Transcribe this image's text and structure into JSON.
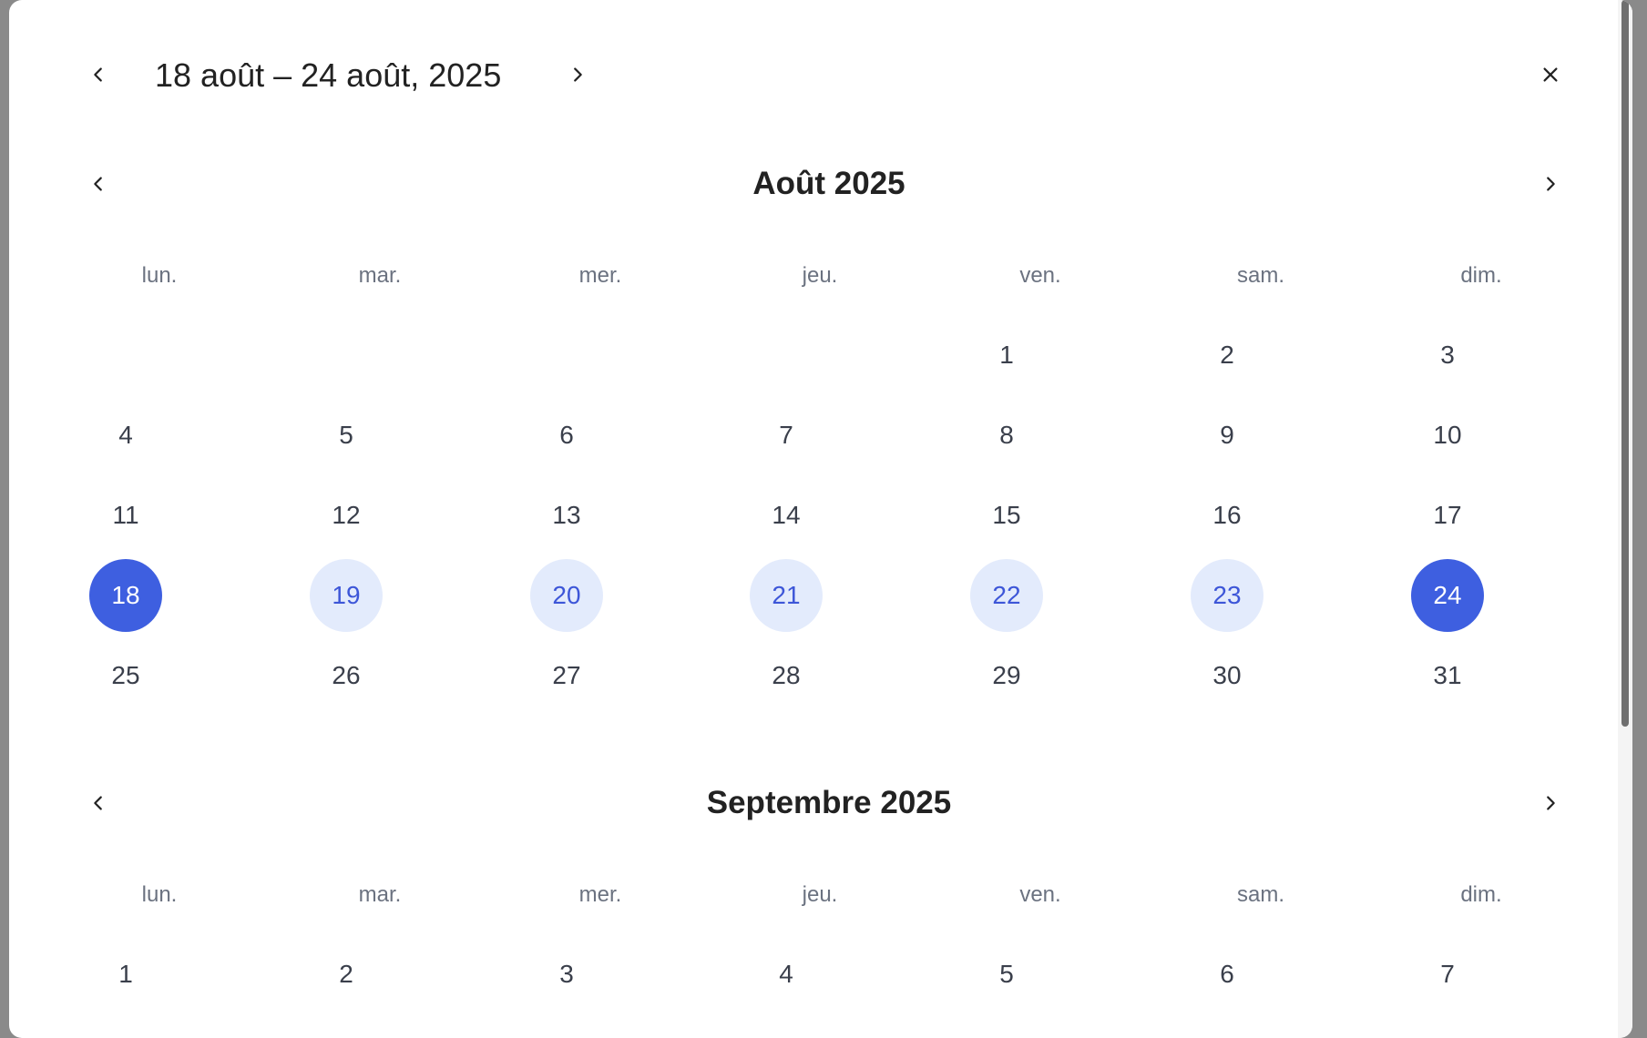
{
  "header": {
    "range_title": "18 août – 24 août, 2025",
    "prev_icon": "chevron-left-icon",
    "next_icon": "chevron-right-icon",
    "close_icon": "close-icon"
  },
  "months": [
    {
      "title": "Août 2025",
      "weekdays": [
        "lun.",
        "mar.",
        "mer.",
        "jeu.",
        "ven.",
        "sam.",
        "dim."
      ],
      "weeks": [
        [
          "",
          "",
          "",
          "",
          "1",
          "2",
          "3"
        ],
        [
          "4",
          "5",
          "6",
          "7",
          "8",
          "9",
          "10"
        ],
        [
          "11",
          "12",
          "13",
          "14",
          "15",
          "16",
          "17"
        ],
        [
          "18",
          "19",
          "20",
          "21",
          "22",
          "23",
          "24"
        ],
        [
          "25",
          "26",
          "27",
          "28",
          "29",
          "30",
          "31"
        ]
      ],
      "range_start": "18",
      "range_end": "24",
      "in_range": [
        "19",
        "20",
        "21",
        "22",
        "23"
      ]
    },
    {
      "title": "Septembre 2025",
      "weekdays": [
        "lun.",
        "mar.",
        "mer.",
        "jeu.",
        "ven.",
        "sam.",
        "dim."
      ],
      "weeks": [
        [
          "1",
          "2",
          "3",
          "4",
          "5",
          "6",
          "7"
        ]
      ]
    }
  ],
  "colors": {
    "selected": "#3e5fe0",
    "in_range_bg": "#e3ebfc",
    "in_range_text": "#3d56d8",
    "day_text": "#3a3f4b",
    "weekday_text": "#6b7280"
  }
}
